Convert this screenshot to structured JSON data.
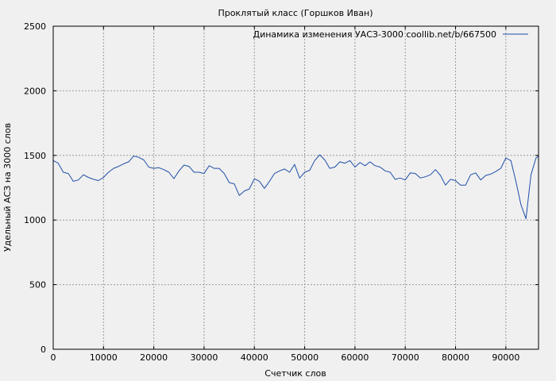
{
  "chart_data": {
    "type": "line",
    "title": "Проклятый класс (Горшков Иван)",
    "xlabel": "Счетчик слов",
    "ylabel": "Удельный АСЗ на 3000 слов",
    "xlim": [
      0,
      96500
    ],
    "ylim": [
      0,
      2500
    ],
    "xticks": [
      0,
      10000,
      20000,
      30000,
      40000,
      50000,
      60000,
      70000,
      80000,
      90000
    ],
    "xtick_labels": [
      "0",
      "10000",
      "20000",
      "30000",
      "40000",
      "50000",
      "60000",
      "70000",
      "80000",
      "90000"
    ],
    "yticks": [
      0,
      500,
      1000,
      1500,
      2000,
      2500
    ],
    "ytick_labels": [
      "0",
      "500",
      "1000",
      "1500",
      "2000",
      "2500"
    ],
    "grid": true,
    "legend_position": "top-right",
    "series": [
      {
        "name": "Динамика изменения УАСЗ-3000 coollib.net/b/667500",
        "color": "#1f4fa8",
        "x": [
          0,
          1000,
          2000,
          3000,
          4000,
          5000,
          6000,
          7000,
          8000,
          9000,
          10000,
          11000,
          12000,
          13000,
          14000,
          15000,
          16000,
          17000,
          18000,
          19000,
          20000,
          21000,
          22000,
          23000,
          24000,
          25000,
          26000,
          27000,
          28000,
          29000,
          30000,
          31000,
          32000,
          33000,
          34000,
          35000,
          36000,
          37000,
          38000,
          39000,
          40000,
          41000,
          42000,
          43000,
          44000,
          45000,
          46000,
          47000,
          48000,
          49000,
          50000,
          51000,
          52000,
          53000,
          54000,
          55000,
          56000,
          57000,
          58000,
          59000,
          60000,
          61000,
          62000,
          63000,
          64000,
          65000,
          66000,
          67000,
          68000,
          69000,
          70000,
          71000,
          72000,
          73000,
          74000,
          75000,
          76000,
          77000,
          78000,
          79000,
          80000,
          81000,
          82000,
          83000,
          84000,
          85000,
          86000,
          87000,
          88000,
          89000,
          90000,
          91000,
          92000,
          93000,
          94000,
          95000,
          96000,
          96500
        ],
        "y": [
          1460,
          1440,
          1370,
          1360,
          1300,
          1310,
          1350,
          1330,
          1315,
          1305,
          1330,
          1370,
          1400,
          1415,
          1435,
          1450,
          1495,
          1485,
          1465,
          1410,
          1400,
          1405,
          1390,
          1370,
          1320,
          1380,
          1425,
          1415,
          1370,
          1370,
          1360,
          1420,
          1400,
          1400,
          1360,
          1290,
          1280,
          1190,
          1225,
          1240,
          1320,
          1300,
          1245,
          1300,
          1360,
          1380,
          1395,
          1370,
          1430,
          1325,
          1370,
          1385,
          1460,
          1505,
          1465,
          1400,
          1410,
          1450,
          1440,
          1460,
          1410,
          1445,
          1420,
          1450,
          1420,
          1410,
          1380,
          1370,
          1315,
          1325,
          1310,
          1365,
          1360,
          1325,
          1335,
          1350,
          1390,
          1345,
          1270,
          1315,
          1305,
          1270,
          1270,
          1350,
          1365,
          1310,
          1345,
          1355,
          1375,
          1400,
          1480,
          1460,
          1300,
          1120,
          1010,
          1350,
          1480,
          1495
        ]
      }
    ]
  }
}
